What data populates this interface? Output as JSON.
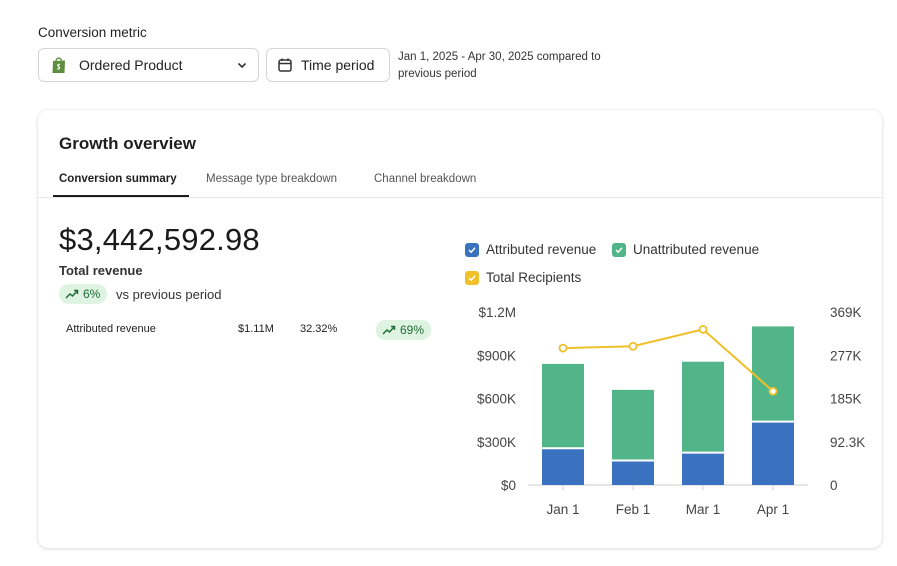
{
  "header": {
    "metric_label": "Conversion metric",
    "metric_value": "Ordered Product",
    "time_button": "Time period",
    "date_range": "Jan 1, 2025 - Apr 30, 2025 compared to previous period"
  },
  "card": {
    "title": "Growth overview",
    "tabs": [
      {
        "label": "Conversion summary",
        "active": true
      },
      {
        "label": "Message type breakdown",
        "active": false
      },
      {
        "label": "Channel breakdown",
        "active": false
      }
    ],
    "total_value": "$3,442,592.98",
    "total_label": "Total revenue",
    "change_pct": "6%",
    "change_suffix": "vs previous period",
    "attributed_row": {
      "label": "Attributed revenue",
      "amount": "$1.11M",
      "share": "32.32%",
      "change": "69%"
    }
  },
  "colors": {
    "attributed": "#3a72c0",
    "unattributed": "#52b489",
    "recipients": "#f0c02a",
    "pill_bg": "#dff3e3",
    "pill_text": "#1d6b33"
  },
  "icons": {
    "store": "shopify-bag-icon",
    "dropdown": "chevron-down-icon",
    "calendar": "calendar-icon",
    "trend": "trending-up-icon",
    "check": "check-icon"
  },
  "chart_data": {
    "type": "bar",
    "stacked": true,
    "categories": [
      "Jan 1",
      "Feb 1",
      "Mar 1",
      "Apr 1"
    ],
    "series": [
      {
        "name": "Attributed revenue",
        "axis": "left",
        "values": [
          255000,
          170000,
          225000,
          440000
        ]
      },
      {
        "name": "Unattributed revenue",
        "axis": "left",
        "values": [
          585000,
          490000,
          630000,
          660000
        ]
      },
      {
        "name": "Total Recipients",
        "axis": "right",
        "type": "line",
        "values": [
          292000,
          296000,
          332000,
          200000
        ]
      }
    ],
    "y_left": {
      "ticks": [
        "$0",
        "$300K",
        "$600K",
        "$900K",
        "$1.2M"
      ],
      "range": [
        0,
        1200000
      ]
    },
    "y_right": {
      "ticks": [
        "0",
        "92.3K",
        "185K",
        "277K",
        "369K"
      ],
      "range": [
        0,
        369000
      ]
    },
    "legend": [
      "Attributed revenue",
      "Unattributed revenue",
      "Total Recipients"
    ],
    "legend_position": "top",
    "grid": false
  }
}
